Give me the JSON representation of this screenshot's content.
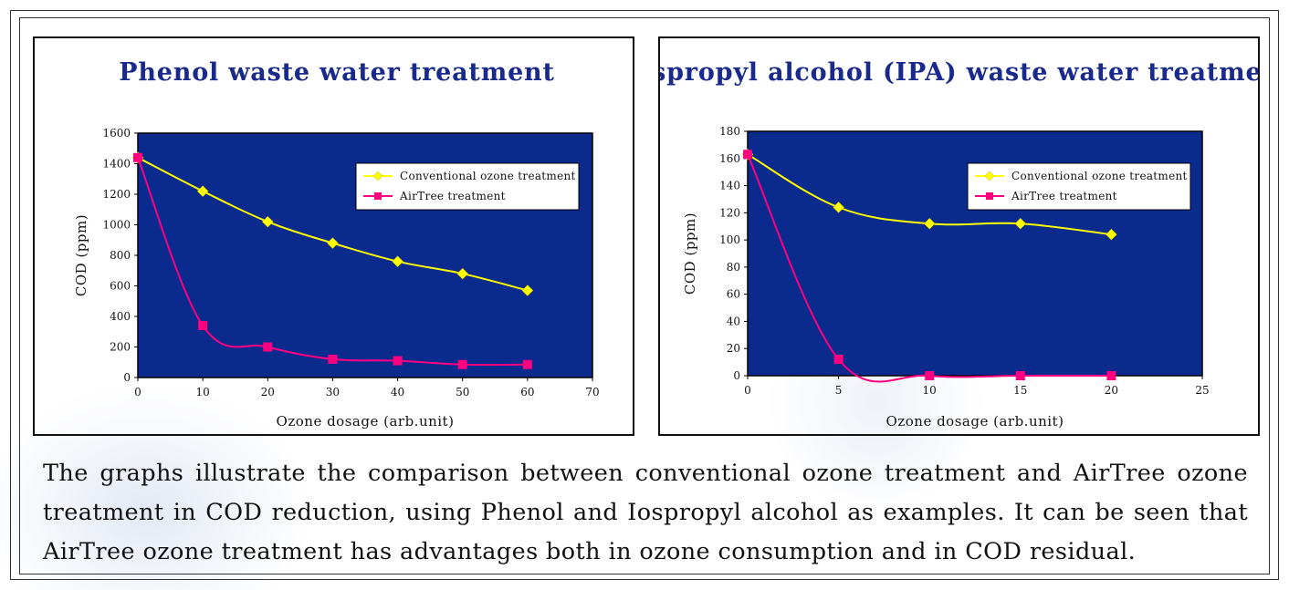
{
  "chart_data": [
    {
      "type": "line",
      "title": "Phenol waste water treatment",
      "xlabel": "Ozone dosage (arb.unit)",
      "ylabel": "COD (ppm)",
      "xlim": [
        0,
        70
      ],
      "ylim": [
        0,
        1600
      ],
      "xticks": [
        0,
        10,
        20,
        30,
        40,
        50,
        60,
        70
      ],
      "yticks": [
        0,
        200,
        400,
        600,
        800,
        1000,
        1200,
        1400,
        1600
      ],
      "legend_position": "top-right",
      "grid": false,
      "plot_background": "#0b2a8e",
      "series": [
        {
          "name": "Conventional ozone treatment",
          "color": "#ffff00",
          "marker": "diamond",
          "x": [
            0,
            10,
            20,
            30,
            40,
            50,
            60
          ],
          "y": [
            1440,
            1220,
            1020,
            880,
            760,
            680,
            570
          ]
        },
        {
          "name": "AirTree treatment",
          "color": "#ff0080",
          "marker": "square",
          "x": [
            0,
            10,
            20,
            30,
            40,
            50,
            60
          ],
          "y": [
            1440,
            340,
            200,
            120,
            110,
            85,
            85
          ]
        }
      ]
    },
    {
      "type": "line",
      "title": "Iospropyl alcohol (IPA) waste water treatment",
      "xlabel": "Ozone dosage (arb.unit)",
      "ylabel": "COD (ppm)",
      "xlim": [
        0,
        25
      ],
      "ylim": [
        0,
        180
      ],
      "xticks": [
        0,
        5,
        10,
        15,
        20,
        25
      ],
      "yticks": [
        0,
        20,
        40,
        60,
        80,
        100,
        120,
        140,
        160,
        180
      ],
      "legend_position": "top-right",
      "grid": false,
      "plot_background": "#0b2a8e",
      "series": [
        {
          "name": "Conventional ozone treatment",
          "color": "#ffff00",
          "marker": "diamond",
          "x": [
            0,
            5,
            10,
            15,
            20
          ],
          "y": [
            163,
            124,
            112,
            112,
            104
          ]
        },
        {
          "name": "AirTree treatment",
          "color": "#ff0080",
          "marker": "square",
          "x": [
            0,
            5,
            10,
            15,
            20
          ],
          "y": [
            163,
            12,
            0,
            0,
            0
          ]
        }
      ]
    }
  ],
  "caption": "The graphs illustrate the comparison between conventional ozone treatment and AirTree ozone treatment in COD reduction, using Phenol and Iospropyl alcohol as examples. It can be seen that AirTree ozone treatment has advantages both in ozone consumption and in COD residual."
}
